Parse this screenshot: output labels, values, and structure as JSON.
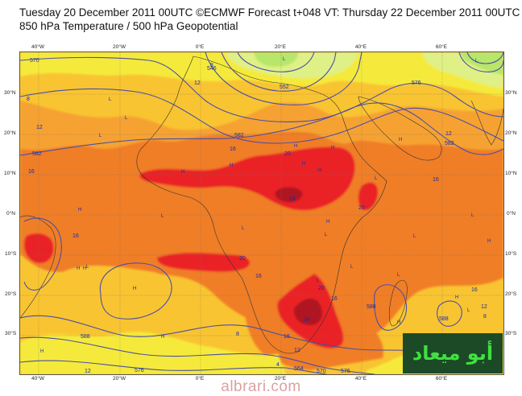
{
  "header": {
    "line1": "Tuesday 20 December 2011 00UTC ©ECMWF Forecast t+048 VT: Thursday 22 December 2011 00UTC",
    "line2": "850 hPa Temperature / 500 hPa Geopotential"
  },
  "axes": {
    "lon_labels": [
      "40°W",
      "20°W",
      "0°E",
      "20°E",
      "40°E",
      "60°E"
    ],
    "lat_labels_left": [
      "30°N",
      "20°N",
      "10°N",
      "0°N",
      "10°S",
      "20°S",
      "30°S"
    ],
    "lat_labels_right": [
      "30°N",
      "20°N",
      "10°N",
      "0°N",
      "10°S",
      "20°S",
      "30°S"
    ]
  },
  "contour_labels": {
    "temperature": [
      "8",
      "12",
      "16",
      "20",
      "24",
      "28",
      "4"
    ],
    "geopotential": [
      "576",
      "582",
      "588",
      "564",
      "570",
      "552",
      "546"
    ]
  },
  "pressure_marks": {
    "high": "H",
    "low": "L"
  },
  "colors": {
    "yellow": "#f5ea3a",
    "yellow_orange": "#f9c431",
    "light_orange": "#f6a231",
    "orange": "#f07e25",
    "red": "#ea2427",
    "dark_red": "#b01220",
    "pale_green": "#dff087",
    "light_green": "#b8e66a",
    "contour": "#4a4fa8"
  },
  "watermark": {
    "logo_text": "أبو ميعاد",
    "site": "albrari.com"
  }
}
